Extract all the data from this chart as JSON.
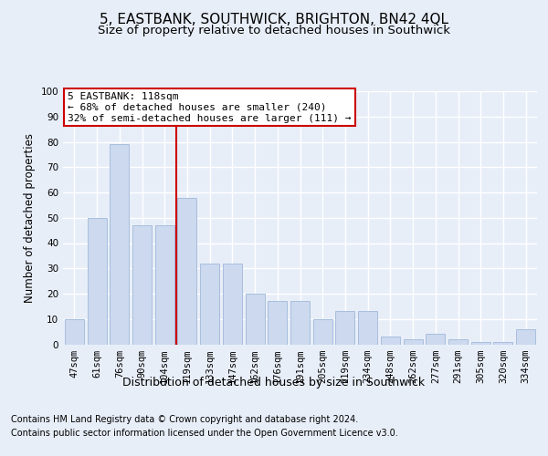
{
  "title1": "5, EASTBANK, SOUTHWICK, BRIGHTON, BN42 4QL",
  "title2": "Size of property relative to detached houses in Southwick",
  "xlabel": "Distribution of detached houses by size in Southwick",
  "ylabel": "Number of detached properties",
  "categories": [
    "47sqm",
    "61sqm",
    "76sqm",
    "90sqm",
    "104sqm",
    "119sqm",
    "133sqm",
    "147sqm",
    "162sqm",
    "176sqm",
    "191sqm",
    "205sqm",
    "219sqm",
    "234sqm",
    "248sqm",
    "262sqm",
    "277sqm",
    "291sqm",
    "305sqm",
    "320sqm",
    "334sqm"
  ],
  "values": [
    10,
    50,
    79,
    47,
    47,
    58,
    32,
    32,
    20,
    17,
    17,
    10,
    13,
    13,
    3,
    2,
    4,
    2,
    1,
    1,
    6
  ],
  "bar_color": "#ccd9ee",
  "bar_edge_color": "#a8bedd",
  "highlight_line_color": "#cc0000",
  "highlight_bar_index": 5,
  "annotation_text": "5 EASTBANK: 118sqm\n← 68% of detached houses are smaller (240)\n32% of semi-detached houses are larger (111) →",
  "footer1": "Contains HM Land Registry data © Crown copyright and database right 2024.",
  "footer2": "Contains public sector information licensed under the Open Government Licence v3.0.",
  "ylim": [
    0,
    100
  ],
  "yticks": [
    0,
    10,
    20,
    30,
    40,
    50,
    60,
    70,
    80,
    90,
    100
  ],
  "background_color": "#e8eef8",
  "grid_color": "#ffffff",
  "title1_fontsize": 11,
  "title2_fontsize": 9.5,
  "ylabel_fontsize": 8.5,
  "tick_fontsize": 7.5,
  "annotation_fontsize": 8,
  "xlabel_fontsize": 9,
  "footer_fontsize": 7
}
